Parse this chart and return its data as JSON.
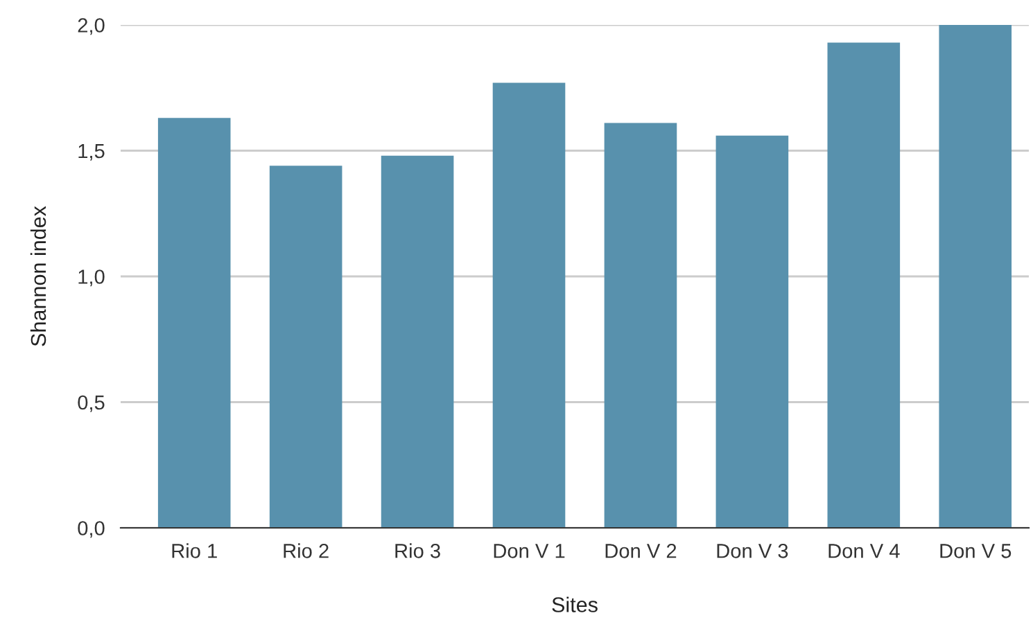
{
  "chart_data": {
    "type": "bar",
    "xlabel": "Sites",
    "ylabel": "Shannon index",
    "categories": [
      "Rio 1",
      "Rio 2",
      "Rio 3",
      "Don V 1",
      "Don V 2",
      "Don V 3",
      "Don V 4",
      "Don V 5"
    ],
    "values": [
      1.63,
      1.44,
      1.48,
      1.77,
      1.61,
      1.56,
      1.93,
      2.0
    ],
    "color": "#5891ad",
    "ylim": [
      0,
      2
    ],
    "yticks": [
      {
        "value": 0,
        "label": "0,0"
      },
      {
        "value": 0.5,
        "label": "0,5"
      },
      {
        "value": 1,
        "label": "1,0"
      },
      {
        "value": 1.5,
        "label": "1,5"
      },
      {
        "value": 2,
        "label": "2,0"
      }
    ],
    "grid": "y"
  }
}
